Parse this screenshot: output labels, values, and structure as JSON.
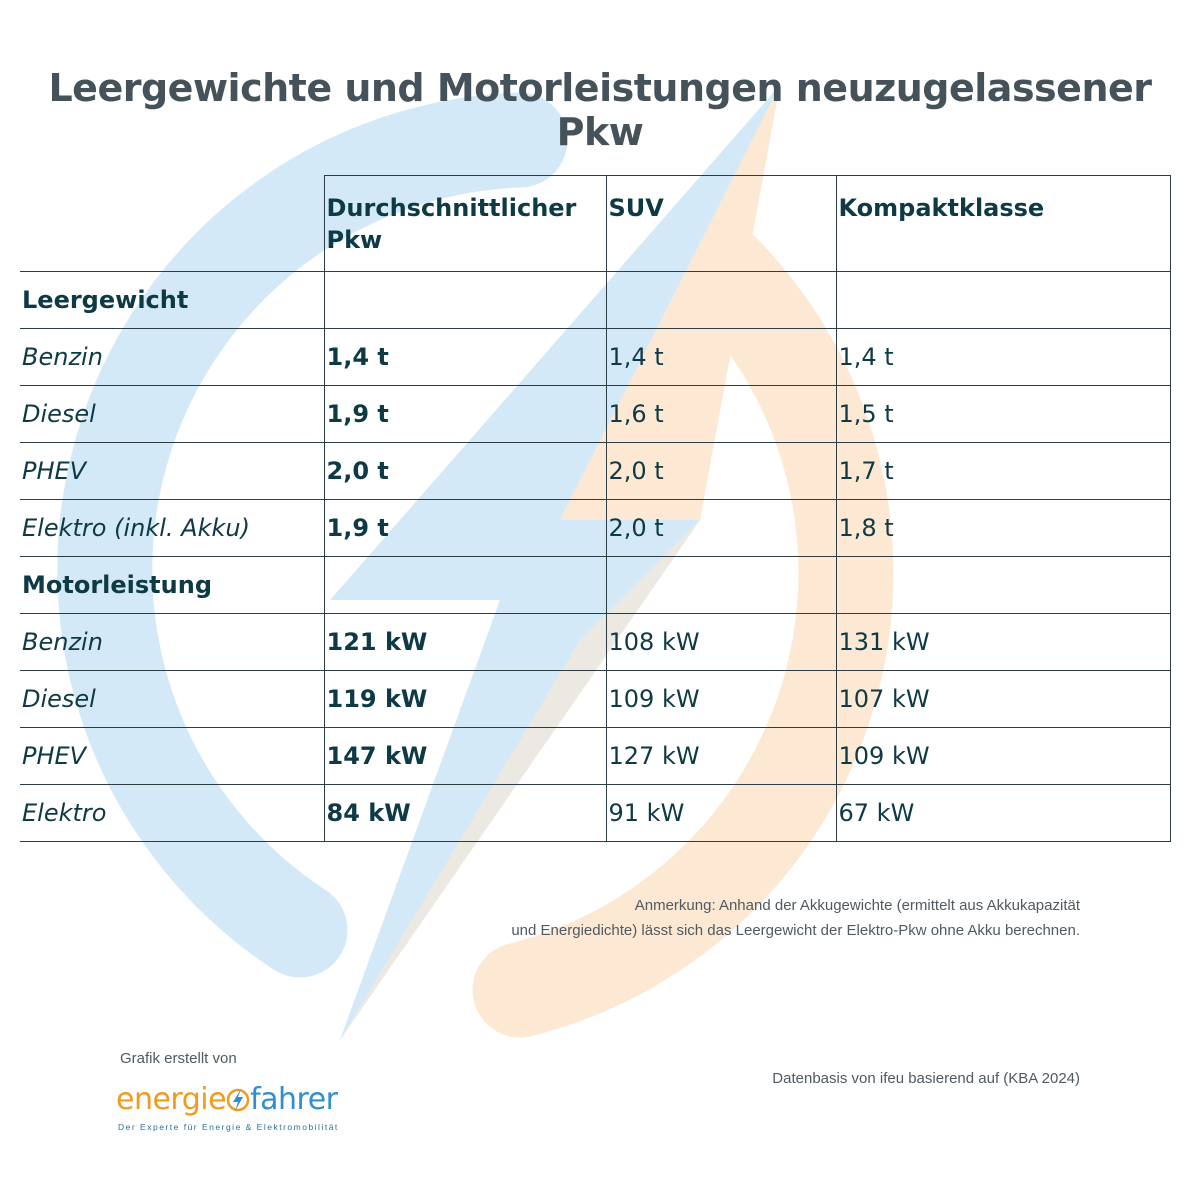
{
  "title": "Leergewichte und Motorleistungen neuzugelassener Pkw",
  "table": {
    "headers": [
      "",
      "Durchschnittlicher Pkw",
      "SUV",
      "Kompaktklasse"
    ],
    "sections": [
      {
        "label": "Leergewicht",
        "rows": [
          {
            "label": "Benzin",
            "avg": "1,4 t",
            "suv": "1,4 t",
            "compact": "1,4 t"
          },
          {
            "label": "Diesel",
            "avg": "1,9 t",
            "suv": "1,6 t",
            "compact": "1,5 t"
          },
          {
            "label": "PHEV",
            "avg": "2,0 t",
            "suv": "2,0 t",
            "compact": "1,7 t"
          },
          {
            "label": "Elektro (inkl. Akku)",
            "avg": "1,9 t",
            "suv": "2,0 t",
            "compact": "1,8 t"
          }
        ]
      },
      {
        "label": "Motorleistung",
        "rows": [
          {
            "label": "Benzin",
            "avg": "121 kW",
            "suv": "108 kW",
            "compact": "131 kW"
          },
          {
            "label": "Diesel",
            "avg": "119 kW",
            "suv": "109 kW",
            "compact": "107 kW"
          },
          {
            "label": "PHEV",
            "avg": "147 kW",
            "suv": "127 kW",
            "compact": "109 kW"
          },
          {
            "label": "Elektro",
            "avg": "84 kW",
            "suv": "91 kW",
            "compact": "67 kW"
          }
        ]
      }
    ]
  },
  "note": {
    "line1": "Anmerkung: Anhand der Akkugewichte (ermittelt aus Akkukapazität",
    "line2": "und Energiedichte) lässt sich das Leergewicht der Elektro-Pkw ohne Akku berechnen."
  },
  "source": "Datenbasis von ifeu basierend auf (KBA 2024)",
  "credit": "Grafik erstellt von",
  "brand": {
    "part1": "energie",
    "part2": "fahrer",
    "tagline": "Der Experte für Energie & Elektromobilität",
    "color_orange": "#f39a1e",
    "color_blue": "#2f8fd0",
    "icon": "lightning-bolt-icon"
  },
  "watermark": {
    "icon": "lightning-bolt-circle-icon",
    "color_blue": "#cfe6f6",
    "color_orange": "#fde6cf"
  }
}
